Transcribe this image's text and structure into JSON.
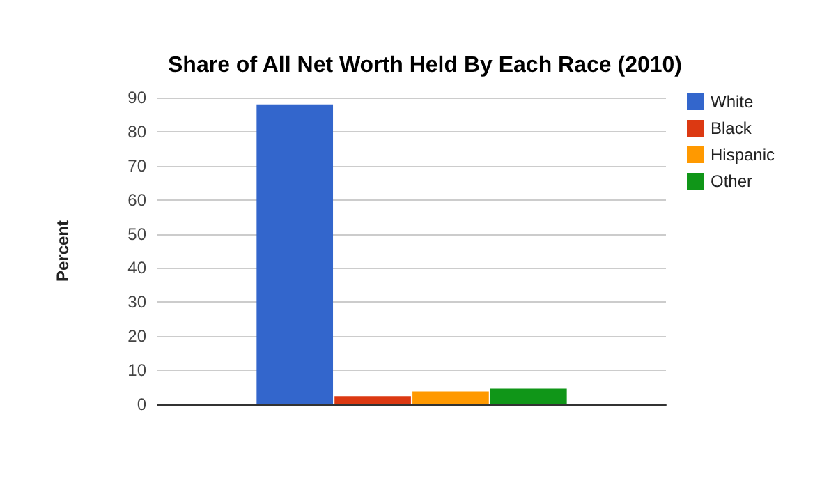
{
  "chart_data": {
    "type": "bar",
    "title": "Share of All Net Worth Held By Each Race (2010)",
    "ylabel": "Percent",
    "categories": [
      null
    ],
    "series": [
      {
        "name": "White",
        "color": "#3366cc",
        "values": [
          88.0
        ]
      },
      {
        "name": "Black",
        "color": "#dc3912",
        "values": [
          2.4
        ]
      },
      {
        "name": "Hispanic",
        "color": "#ff9900",
        "values": [
          3.8
        ]
      },
      {
        "name": "Other",
        "color": "#109618",
        "values": [
          4.6
        ]
      }
    ],
    "ylim": [
      0,
      90
    ],
    "yticks": [
      0,
      10,
      20,
      30,
      40,
      50,
      60,
      70,
      80,
      90
    ],
    "grid": "y",
    "legend": "right"
  }
}
